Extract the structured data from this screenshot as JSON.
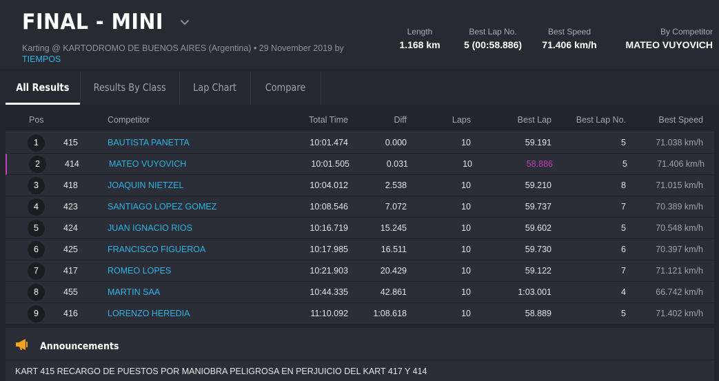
{
  "header": {
    "title": "FINAL - MINI",
    "subtitle": "Karting @ KARTODROMO DE BUENOS AIRES (Argentina) • 29 November 2019 by",
    "subtitle_link": "TIEMPOS",
    "stats": [
      {
        "label": "Length",
        "value": "1.168 km"
      },
      {
        "label": "Best Lap No.",
        "value": "5 (00:58.886)"
      },
      {
        "label": "Best Speed",
        "value": "71.406 km/h"
      },
      {
        "label": "By Competitor",
        "value": "MATEO VUYOVICH"
      }
    ]
  },
  "tabs": [
    {
      "label": "All Results",
      "active": true
    },
    {
      "label": "Results By Class",
      "active": false
    },
    {
      "label": "Lap Chart",
      "active": false
    },
    {
      "label": "Compare",
      "active": false
    }
  ],
  "table": {
    "headers": {
      "pos": "Pos",
      "competitor": "Competitor",
      "total_time": "Total Time",
      "diff": "Diff",
      "laps": "Laps",
      "best_lap": "Best Lap",
      "best_lap_no": "Best Lap No.",
      "best_speed": "Best Speed"
    },
    "rows": [
      {
        "pos": "1",
        "num": "415",
        "competitor": "BAUTISTA PANETTA",
        "total_time": "10:01.474",
        "diff": "0.000",
        "laps": "10",
        "best_lap": "59.191",
        "best_lap_no": "5",
        "best_speed": "71.038 km/h"
      },
      {
        "pos": "2",
        "num": "414",
        "competitor": "MATEO VUYOVICH",
        "total_time": "10:01.505",
        "diff": "0.031",
        "laps": "10",
        "best_lap": "58.886",
        "best_lap_no": "5",
        "best_speed": "71.406 km/h"
      },
      {
        "pos": "3",
        "num": "418",
        "competitor": "JOAQUIN NIETZEL",
        "total_time": "10:04.012",
        "diff": "2.538",
        "laps": "10",
        "best_lap": "59.210",
        "best_lap_no": "8",
        "best_speed": "71.015 km/h"
      },
      {
        "pos": "4",
        "num": "423",
        "competitor": "SANTIAGO LOPEZ GOMEZ",
        "total_time": "10:08.546",
        "diff": "7.072",
        "laps": "10",
        "best_lap": "59.737",
        "best_lap_no": "7",
        "best_speed": "70.389 km/h"
      },
      {
        "pos": "5",
        "num": "424",
        "competitor": "JUAN IGNACIO RIOS",
        "total_time": "10:16.719",
        "diff": "15.245",
        "laps": "10",
        "best_lap": "59.602",
        "best_lap_no": "5",
        "best_speed": "70.548 km/h"
      },
      {
        "pos": "6",
        "num": "425",
        "competitor": "FRANCISCO FIGUEROA",
        "total_time": "10:17.985",
        "diff": "16.511",
        "laps": "10",
        "best_lap": "59.730",
        "best_lap_no": "6",
        "best_speed": "70.397 km/h"
      },
      {
        "pos": "7",
        "num": "417",
        "competitor": "ROMEO LOPES",
        "total_time": "10:21.903",
        "diff": "20.429",
        "laps": "10",
        "best_lap": "59.122",
        "best_lap_no": "7",
        "best_speed": "71.121 km/h"
      },
      {
        "pos": "8",
        "num": "455",
        "competitor": "MARTIN SAA",
        "total_time": "10:44.335",
        "diff": "42.861",
        "laps": "10",
        "best_lap": "1:03.001",
        "best_lap_no": "4",
        "best_speed": "66.742 km/h"
      },
      {
        "pos": "9",
        "num": "416",
        "competitor": "LORENZO HEREDIA",
        "total_time": "11:10.092",
        "diff": "1:08.618",
        "laps": "10",
        "best_lap": "58.889",
        "best_lap_no": "5",
        "best_speed": "71.402 km/h"
      }
    ],
    "highlight_row_index": 1,
    "colors": {
      "best_lap_highlight": "#c33fc0",
      "competitor_link": "#2fb3e6"
    }
  },
  "announcements": {
    "title": "Announcements",
    "icon": "megaphone-icon",
    "text": "KART 415 RECARGO DE PUESTOS POR MANIOBRA PELIGROSA EN PERJUICIO DEL KART 417 Y 414"
  }
}
